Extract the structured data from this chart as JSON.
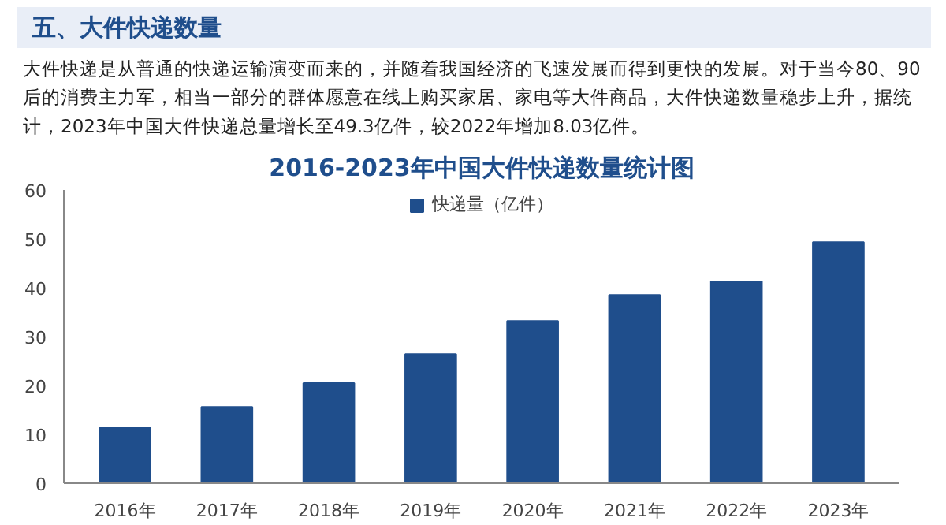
{
  "chart_data": {
    "type": "bar",
    "title": "2016-2023年中国大件快递数量统计图",
    "annotations": [
      "五、大件快递数量",
      "大件快递是从普通的快递运输演变而来的，并随着我国经济的飞速发展而得到更快的发展。对于当今80、90后的消费主力军，相当一部分的群体愿意在线上购买家居、家电等大件商品，大件快递数量稳步上升，据统计，2023年中国大件快递总量增长至49.3亿件，较2022年增加8.03亿件。"
    ],
    "categories": [
      "2016年",
      "2017年",
      "2018年",
      "2019年",
      "2020年",
      "2021年",
      "2022年",
      "2023年"
    ],
    "series": [
      {
        "name": "快递量（亿件）",
        "color": "#1f4e8c",
        "values": [
          11.3,
          15.6,
          20.5,
          26.4,
          33.2,
          38.5,
          41.3,
          49.3
        ]
      }
    ],
    "ylim": [
      0,
      60
    ],
    "yticks": [
      0,
      10,
      20,
      30,
      40,
      50,
      60
    ],
    "grid": false,
    "legend": "top"
  }
}
